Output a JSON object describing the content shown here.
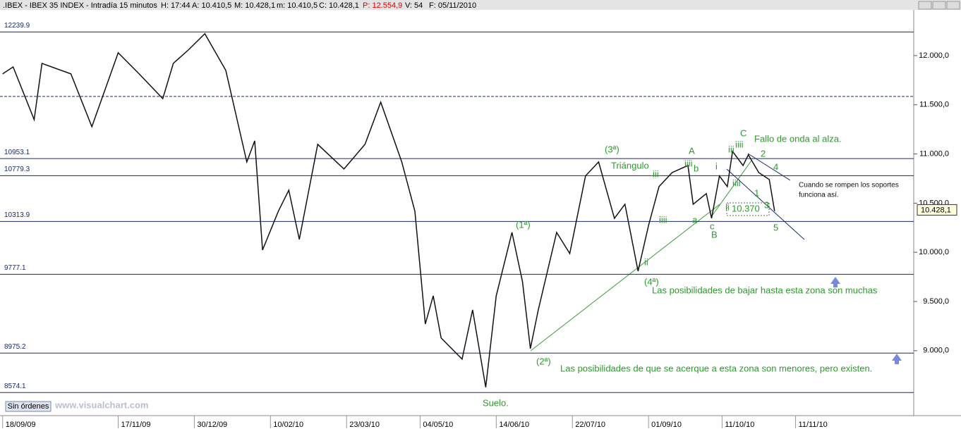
{
  "header": {
    "parts": [
      ".IBEX - IBEX 35 INDEX - Intradía 15 minutos",
      "H: 17:44",
      "A: 10.410,5",
      "M: 10.428,1",
      "m: 10.410,5",
      "C: 10.428,1",
      "P: 12.554,9",
      "V: 54",
      "F: 05/11/2010"
    ]
  },
  "footer": {
    "button": "Sin órdenes",
    "site": "www.visualchart.com"
  },
  "chart_data": {
    "type": "line",
    "x": [
      0,
      4,
      12,
      15,
      26,
      34,
      44,
      52,
      61,
      65,
      71,
      77,
      85,
      93,
      96,
      99,
      105,
      109,
      113,
      120,
      130,
      138,
      144,
      152,
      157,
      161,
      164,
      167,
      175,
      179,
      184,
      188,
      194,
      198,
      201,
      204,
      211,
      216,
      222,
      227,
      233,
      237,
      242,
      246,
      250,
      255,
      261,
      263,
      268,
      270,
      273,
      276,
      278,
      282,
      284,
      288,
      292,
      294
    ],
    "series": [
      {
        "color": "#111111",
        "values": [
          11814,
          11885,
          11349,
          11921,
          11814,
          11277,
          12029,
          11814,
          11563,
          11921,
          12064,
          12222,
          11850,
          10919,
          11134,
          10024,
          10418,
          10632,
          10131,
          11098,
          10847,
          11098,
          11527,
          10919,
          10418,
          9272,
          9558,
          9129,
          8914,
          9415,
          8628,
          9558,
          10203,
          9702,
          9022,
          9415,
          10203,
          9988,
          10776,
          10919,
          10346,
          10489,
          9809,
          10274,
          10668,
          10811,
          10883,
          10489,
          10597,
          10346,
          10776,
          10668,
          11026,
          10883,
          10991,
          10811,
          10740,
          10418
        ]
      }
    ],
    "xlim": [
      -1,
      347
    ],
    "xticks": [
      {
        "value": 0,
        "label": "18/09/09"
      },
      {
        "value": 44,
        "label": "17/11/09"
      },
      {
        "value": 73,
        "label": "30/12/09"
      },
      {
        "value": 102,
        "label": "10/02/10"
      },
      {
        "value": 131,
        "label": "23/03/10"
      },
      {
        "value": 159,
        "label": "04/05/10"
      },
      {
        "value": 188,
        "label": "14/06/10"
      },
      {
        "value": 217,
        "label": "22/07/10"
      },
      {
        "value": 246,
        "label": "01/09/10"
      },
      {
        "value": 274,
        "label": "11/10/10"
      },
      {
        "value": 302,
        "label": "11/11/10"
      }
    ],
    "ylim": [
      8340,
      12465
    ],
    "yticks": [
      {
        "value": 9000,
        "label": "9.000,0"
      },
      {
        "value": 9500,
        "label": "9.500,0"
      },
      {
        "value": 10000,
        "label": "10.000,0"
      },
      {
        "value": 10500,
        "label": "10.500,0"
      },
      {
        "value": 11000,
        "label": "11.000,0"
      },
      {
        "value": 11500,
        "label": "11.500,0"
      },
      {
        "value": 12000,
        "label": "12.000,0"
      }
    ],
    "levels": [
      12239.9,
      10953.1,
      10779.3,
      10313.9,
      9777.1,
      8975.2,
      8574.1
    ],
    "dashed_level": 11585,
    "last_price": {
      "value": 10428.1,
      "label": "10.428,1"
    },
    "annotations": [
      "(1ª)",
      "(2ª)",
      "(3ª)",
      "(4ª)",
      "Triángulo",
      "A",
      "iiii",
      "b",
      "iii",
      "iiii",
      "a",
      "c",
      "B",
      "i",
      "ii",
      "iii",
      "iiii",
      "C",
      "2",
      "4",
      "iiii",
      "1",
      "3",
      "5",
      "ii",
      "10.370",
      "Fallo de onda al alza.",
      "Cuando se rompen los soportes",
      "funciona así.",
      "Las posibilidades de bajar hasta esta zona son muchas",
      "Las posibilidades de que se acerque a esta zona son menores, pero existen.",
      "Suelo."
    ]
  }
}
